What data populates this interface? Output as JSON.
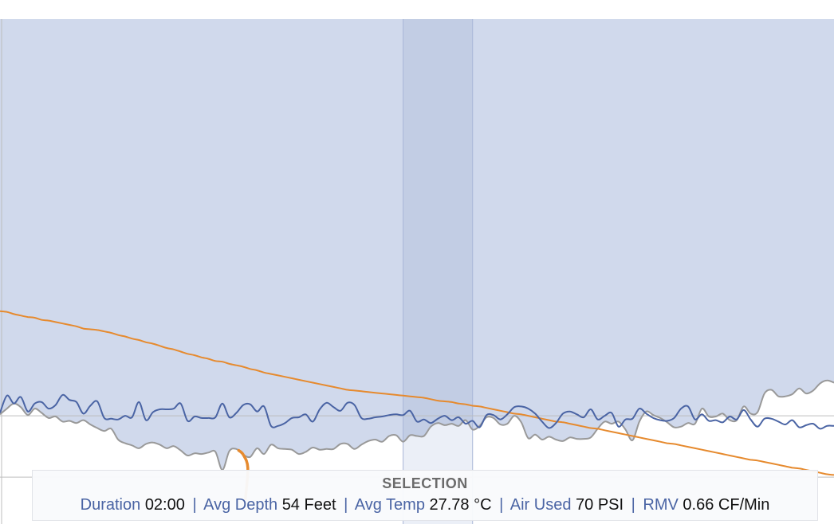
{
  "colors": {
    "area_fill": "#d0d9ec",
    "selection_fill": "#c2cde4",
    "selection_lower_fill": "#ebeff7",
    "selection_border": "#a9b6d8",
    "depth_line": "#999999",
    "temp_line": "#4a64a4",
    "pressure_line": "#e68a2e",
    "grid_line": "#bdbdbd",
    "stat_label": "#4a64a4"
  },
  "chart_data": {
    "type": "line",
    "title": "",
    "xlabel": "",
    "ylabel": "",
    "grid": true,
    "n_samples": 121,
    "selection_range": [
      58,
      68
    ],
    "series": [
      {
        "role": "depth",
        "style": "filled-area",
        "values": [
          54.8,
          54.0,
          53.3,
          53.8,
          54.9,
          54.0,
          54.6,
          55.3,
          55.1,
          55.8,
          55.7,
          56.0,
          55.6,
          56.2,
          56.7,
          57.1,
          56.8,
          58.3,
          58.8,
          59.1,
          59.5,
          58.9,
          58.7,
          59.0,
          59.5,
          59.2,
          59.8,
          60.5,
          60.2,
          60.3,
          60.1,
          60.0,
          62.5,
          59.9,
          59.6,
          60.4,
          60.7,
          59.5,
          60.3,
          59.0,
          59.5,
          59.6,
          59.7,
          60.3,
          60.0,
          59.4,
          59.7,
          59.6,
          59.6,
          58.9,
          58.9,
          59.6,
          59.0,
          58.5,
          58.3,
          58.6,
          57.8,
          57.7,
          58.6,
          57.7,
          57.8,
          57.8,
          56.5,
          56.0,
          56.3,
          56.1,
          56.4,
          55.6,
          56.9,
          56.4,
          55.2,
          55.3,
          56.2,
          56.1,
          55.0,
          55.9,
          58.1,
          57.6,
          58.3,
          57.9,
          58.3,
          58.5,
          58.0,
          58.2,
          58.2,
          58.0,
          56.8,
          55.8,
          56.1,
          55.8,
          56.9,
          58.4,
          55.8,
          54.4,
          54.9,
          55.3,
          55.9,
          56.6,
          56.5,
          56.0,
          56.1,
          54.0,
          55.1,
          55.1,
          54.7,
          55.6,
          55.6,
          53.7,
          54.7,
          54.5,
          51.9,
          51.4,
          52.3,
          52.3,
          52.0,
          51.2,
          51.9,
          51.5,
          50.5,
          50.1,
          50.4
        ]
      },
      {
        "role": "temperature",
        "style": "line",
        "values": [
          54.6,
          52.2,
          53.3,
          52.4,
          54.4,
          53.3,
          53.1,
          54.0,
          53.5,
          52.1,
          52.8,
          53.1,
          54.7,
          53.6,
          53.0,
          55.3,
          55.4,
          55.5,
          55.0,
          55.2,
          53.1,
          55.6,
          54.5,
          54.1,
          54.1,
          54.0,
          53.3,
          55.7,
          55.1,
          55.3,
          55.3,
          55.2,
          53.3,
          55.2,
          54.6,
          53.5,
          53.4,
          54.4,
          53.7,
          56.4,
          56.4,
          56.0,
          55.3,
          55.2,
          54.8,
          55.8,
          54.1,
          53.2,
          53.8,
          54.3,
          53.2,
          53.5,
          55.3,
          55.4,
          55.2,
          55.1,
          54.9,
          54.8,
          54.9,
          54.3,
          55.8,
          55.5,
          56.0,
          55.4,
          55.0,
          55.6,
          55.2,
          56.1,
          55.7,
          56.6,
          54.9,
          54.9,
          55.5,
          54.8,
          53.8,
          53.7,
          54.0,
          54.7,
          55.8,
          56.7,
          56.0,
          54.7,
          54.4,
          54.8,
          55.2,
          54.1,
          55.5,
          55.0,
          54.6,
          56.5,
          55.5,
          55.4,
          54.0,
          54.7,
          55.3,
          55.6,
          55.7,
          55.3,
          54.0,
          53.7,
          55.5,
          54.8,
          55.7,
          55.6,
          55.9,
          55.1,
          55.5,
          54.2,
          55.5,
          56.5,
          55.4,
          55.4,
          55.8,
          56.2,
          55.6,
          56.6,
          56.3,
          56.1,
          56.8,
          56.4,
          56.4
        ]
      },
      {
        "role": "pressure",
        "style": "line",
        "values": [
          40.5,
          40.6,
          40.9,
          41.1,
          41.3,
          41.4,
          41.7,
          41.8,
          42.0,
          42.2,
          42.4,
          42.6,
          42.9,
          43.0,
          43.1,
          43.3,
          43.5,
          43.8,
          44.0,
          44.3,
          44.5,
          44.8,
          45.0,
          45.3,
          45.6,
          45.8,
          46.1,
          46.4,
          46.6,
          46.9,
          47.1,
          47.4,
          47.5,
          47.8,
          48.0,
          48.2,
          48.5,
          48.7,
          49.0,
          49.2,
          49.4,
          49.6,
          49.8,
          50.0,
          50.2,
          50.4,
          50.6,
          50.8,
          51.0,
          51.2,
          51.4,
          51.5,
          51.6,
          51.7,
          51.8,
          51.9,
          52.0,
          52.1,
          52.2,
          52.3,
          52.4,
          52.5,
          52.7,
          52.9,
          53.0,
          53.1,
          53.3,
          53.4,
          53.6,
          53.7,
          53.9,
          54.1,
          54.3,
          54.5,
          54.7,
          54.8,
          55.0,
          55.2,
          55.4,
          55.6,
          55.8,
          55.9,
          56.1,
          56.3,
          56.5,
          56.7,
          56.8,
          57.0,
          57.2,
          57.4,
          57.6,
          57.8,
          58.0,
          58.2,
          58.4,
          58.6,
          58.8,
          58.9,
          59.1,
          59.3,
          59.5,
          59.7,
          59.9,
          60.1,
          60.3,
          60.5,
          60.7,
          60.9,
          61.1,
          61.2,
          61.4,
          61.6,
          61.8,
          62.0,
          62.2,
          62.3,
          62.5,
          62.7,
          62.9,
          63.1,
          63.2
        ]
      }
    ]
  },
  "selection": {
    "title": "SELECTION",
    "stats": [
      {
        "label": "Duration",
        "value": "02:00"
      },
      {
        "label": "Avg Depth",
        "value": "54 Feet"
      },
      {
        "label": "Avg Temp",
        "value": "27.78 °C"
      },
      {
        "label": "Air Used",
        "value": "70 PSI"
      },
      {
        "label": "RMV",
        "value": "0.66 CF/Min"
      }
    ]
  }
}
